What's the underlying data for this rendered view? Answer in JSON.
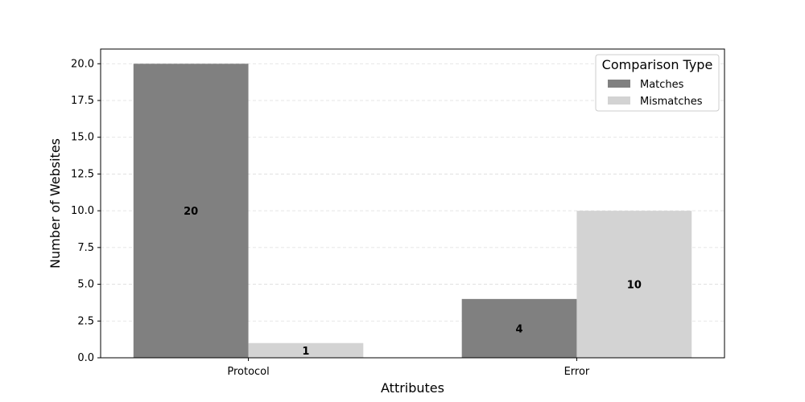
{
  "chart_data": {
    "type": "bar",
    "categories": [
      "Protocol",
      "Error"
    ],
    "series": [
      {
        "name": "Matches",
        "values": [
          20,
          4
        ],
        "color": "#808080"
      },
      {
        "name": "Mismatches",
        "values": [
          1,
          10
        ],
        "color": "#d3d3d3"
      }
    ],
    "xlabel": "Attributes",
    "ylabel": "Number of Websites",
    "ylim": [
      0,
      21
    ],
    "yticks": [
      0,
      2.5,
      5,
      7.5,
      10,
      12.5,
      15,
      17.5,
      20
    ],
    "ytick_labels": [
      "0.0",
      "2.5",
      "5.0",
      "7.5",
      "10.0",
      "12.5",
      "15.0",
      "17.5",
      "20.0"
    ],
    "grid": "y, dashed",
    "legend": {
      "title": "Comparison Type",
      "position": "top-right"
    },
    "data_labels": true
  }
}
